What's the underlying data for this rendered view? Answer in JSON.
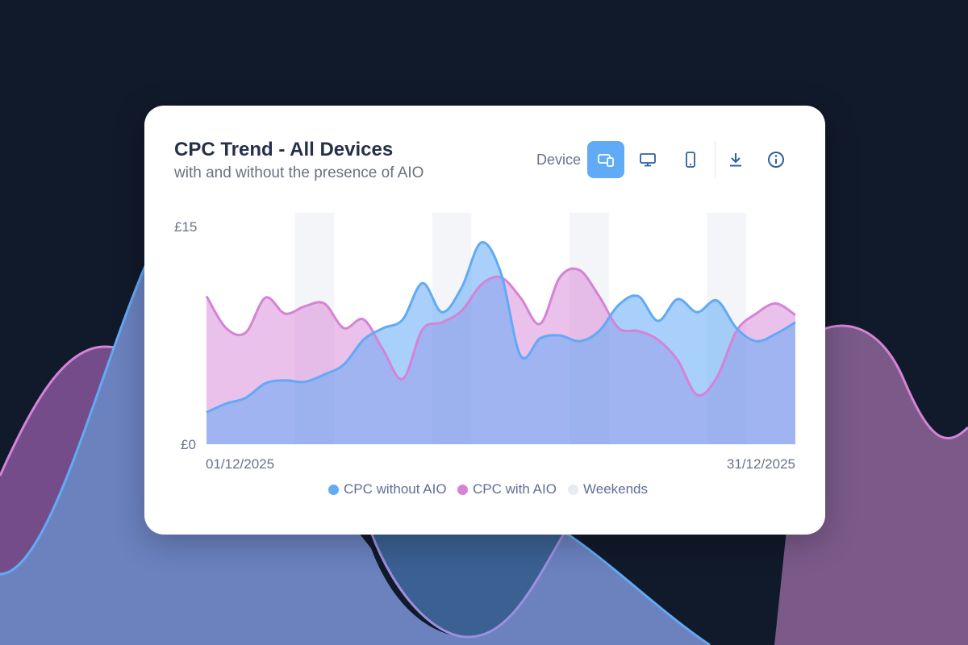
{
  "colors": {
    "page_bg": "#111a2b",
    "without_aio": "#61aaf6",
    "with_aio": "#d583d6",
    "weekends": "#e8ebf1",
    "active_toggle": "#61aaf6"
  },
  "card": {
    "title": "CPC Trend - All Devices",
    "subtitle": "with and without the presence of AIO"
  },
  "controls": {
    "device_label": "Device",
    "icons": [
      "all-devices-icon",
      "desktop-icon",
      "mobile-icon",
      "download-icon",
      "info-icon"
    ],
    "active": "all-devices-icon"
  },
  "chart_data": {
    "type": "area",
    "title": "CPC Trend - All Devices",
    "subtitle": "with and without the presence of AIO",
    "y_ticks": [
      "£15",
      "£0"
    ],
    "ylim": [
      0,
      15
    ],
    "x_start_label": "01/12/2025",
    "x_end_label": "31/12/2025",
    "x": [
      1,
      2,
      3,
      4,
      5,
      6,
      7,
      8,
      9,
      10,
      11,
      12,
      13,
      14,
      15,
      16,
      17,
      18,
      19,
      20,
      21,
      22,
      23,
      24,
      25,
      26,
      27,
      28,
      29,
      30,
      31
    ],
    "weekend_days": [
      [
        6,
        7
      ],
      [
        13,
        14
      ],
      [
        20,
        21
      ],
      [
        27,
        28
      ]
    ],
    "series": [
      {
        "name": "CPC without AIO",
        "color": "#61aaf6",
        "values": [
          2.2,
          2.8,
          3.2,
          4.2,
          4.4,
          4.3,
          4.8,
          5.5,
          7.2,
          8.0,
          8.6,
          11.1,
          9.1,
          10.8,
          13.9,
          11.8,
          6.1,
          7.3,
          7.5,
          7.1,
          7.8,
          9.6,
          10.2,
          8.5,
          10.0,
          9.1,
          9.9,
          8.0,
          7.1,
          7.6,
          8.4
        ]
      },
      {
        "name": "CPC with AIO",
        "color": "#d583d6",
        "values": [
          10.2,
          8.0,
          7.7,
          10.1,
          9.0,
          9.5,
          9.7,
          8.0,
          8.6,
          6.5,
          4.5,
          7.9,
          8.4,
          9.2,
          11.0,
          11.5,
          10.1,
          8.3,
          11.5,
          12.0,
          10.2,
          8.0,
          7.8,
          7.2,
          5.8,
          3.4,
          4.6,
          7.8,
          9.0,
          9.7,
          8.9
        ]
      }
    ],
    "legend": [
      "CPC without AIO",
      "CPC with AIO",
      "Weekends"
    ],
    "legend_placement": "bottom-center",
    "grid": false
  }
}
